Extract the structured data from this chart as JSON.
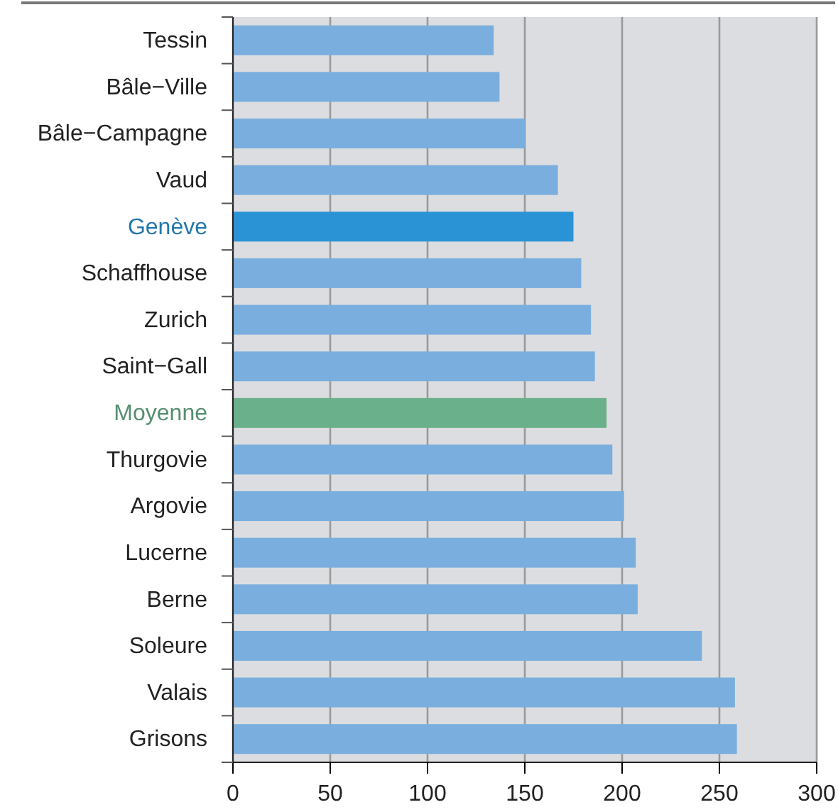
{
  "chart_data": {
    "type": "bar",
    "orientation": "horizontal",
    "categories": [
      "Tessin",
      "Bâle−Ville",
      "Bâle−Campagne",
      "Vaud",
      "Genève",
      "Schaffhouse",
      "Zurich",
      "Saint−Gall",
      "Moyenne",
      "Thurgovie",
      "Argovie",
      "Lucerne",
      "Berne",
      "Soleure",
      "Valais",
      "Grisons"
    ],
    "values": [
      134,
      137,
      150,
      167,
      175,
      179,
      184,
      186,
      192,
      195,
      201,
      207,
      208,
      241,
      258,
      259
    ],
    "colors": [
      "#7aaede",
      "#7aaede",
      "#7aaede",
      "#7aaede",
      "#2a93d5",
      "#7aaede",
      "#7aaede",
      "#7aaede",
      "#6ab08a",
      "#7aaede",
      "#7aaede",
      "#7aaede",
      "#7aaede",
      "#7aaede",
      "#7aaede",
      "#7aaede"
    ],
    "xlim": [
      0,
      300
    ],
    "xticks": [
      0,
      50,
      100,
      150,
      200,
      250,
      300
    ],
    "grid": "x"
  }
}
